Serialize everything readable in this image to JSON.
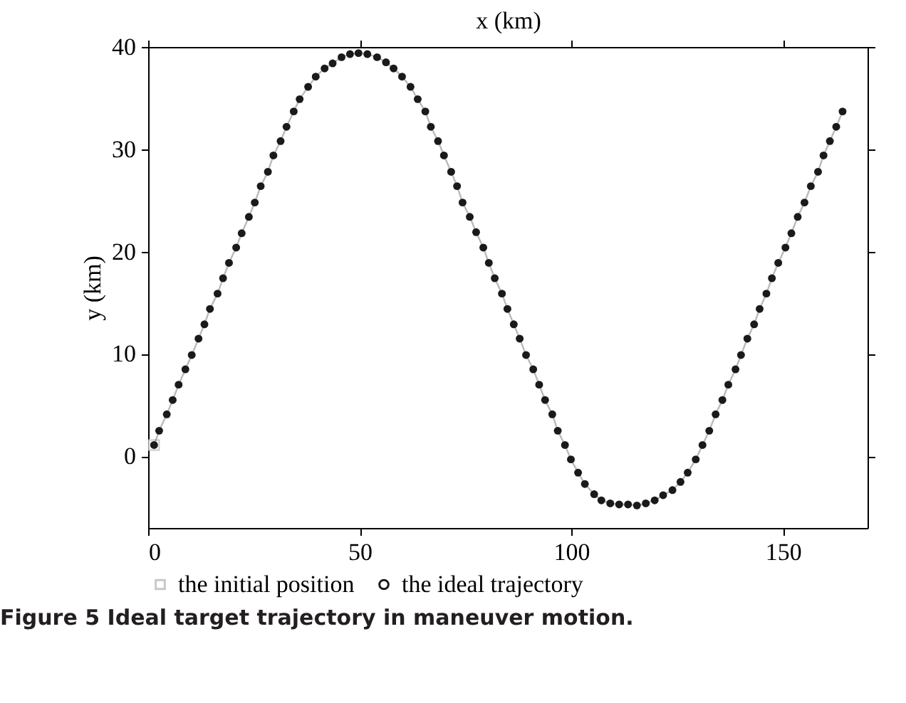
{
  "chart_data": {
    "type": "line",
    "xlabel": "x (km)",
    "ylabel": "y (km)",
    "xlim": [
      0,
      170
    ],
    "xticks": [
      0,
      50,
      100,
      150
    ],
    "ylim": [
      -7,
      40
    ],
    "yticks": [
      0,
      10,
      20,
      30,
      40
    ],
    "grid": false,
    "legend": "bottom",
    "annotations": [
      "Figure 5 Ideal target trajectory in maneuver motion."
    ],
    "series": [
      {
        "name": "the initial position",
        "type": "scatter",
        "marker": "square",
        "color": "#c8c8c8",
        "x": [
          1.4
        ],
        "values": [
          1.1
        ]
      },
      {
        "name": "the ideal trajectory",
        "marker": "circle",
        "line_style": "solid",
        "color": "#1a1a1a",
        "x": [
          1.4,
          2.6,
          4.4,
          5.8,
          7.2,
          8.8,
          10.3,
          11.9,
          13.3,
          14.6,
          16.4,
          17.7,
          19.1,
          20.8,
          22.1,
          23.8,
          25.2,
          26.6,
          28.3,
          29.6,
          31.3,
          32.7,
          34.4,
          35.8,
          37.8,
          39.6,
          41.7,
          43.6,
          45.7,
          47.7,
          49.7,
          51.8,
          54.1,
          56.2,
          58.0,
          60.0,
          62.0,
          63.7,
          65.5,
          66.8,
          68.5,
          69.9,
          71.6,
          73.0,
          74.3,
          76.0,
          77.5,
          79.2,
          80.5,
          81.9,
          83.6,
          84.9,
          86.4,
          87.8,
          89.3,
          91.0,
          92.4,
          93.8,
          95.5,
          96.8,
          98.5,
          99.9,
          101.6,
          103.2,
          105.4,
          107.1,
          109.2,
          111.3,
          113.4,
          115.5,
          117.6,
          119.7,
          121.7,
          123.9,
          125.8,
          127.5,
          129.4,
          131.0,
          132.6,
          134.1,
          135.7,
          137.1,
          138.8,
          140.1,
          141.6,
          143.2,
          144.5,
          146.1,
          147.4,
          148.9,
          150.6,
          152.0,
          153.5,
          155.1,
          156.6,
          158.3,
          159.6,
          161.1,
          162.6,
          164.1
        ],
        "values": [
          1.1,
          2.5,
          4.1,
          5.5,
          7.0,
          8.5,
          9.9,
          11.5,
          12.9,
          14.4,
          15.9,
          17.4,
          18.9,
          20.4,
          21.8,
          23.4,
          24.8,
          26.4,
          27.8,
          29.4,
          30.8,
          32.2,
          33.7,
          34.9,
          36.1,
          37.1,
          37.9,
          38.4,
          39.0,
          39.3,
          39.4,
          39.3,
          39.0,
          38.5,
          37.9,
          37.1,
          36.1,
          34.9,
          33.7,
          32.2,
          30.8,
          29.4,
          27.8,
          26.4,
          24.8,
          23.4,
          21.9,
          20.4,
          18.9,
          17.4,
          15.9,
          14.4,
          12.9,
          11.5,
          9.9,
          8.5,
          7.0,
          5.5,
          4.1,
          2.5,
          1.1,
          -0.3,
          -1.6,
          -2.7,
          -3.7,
          -4.3,
          -4.6,
          -4.7,
          -4.7,
          -4.8,
          -4.6,
          -4.3,
          -3.8,
          -3.3,
          -2.5,
          -1.6,
          -0.3,
          1.1,
          2.5,
          4.1,
          5.5,
          7.0,
          8.5,
          9.9,
          11.5,
          12.9,
          14.4,
          15.9,
          17.4,
          18.9,
          20.4,
          21.8,
          23.4,
          24.8,
          26.4,
          27.8,
          29.4,
          30.8,
          32.2,
          33.7
        ]
      }
    ]
  }
}
